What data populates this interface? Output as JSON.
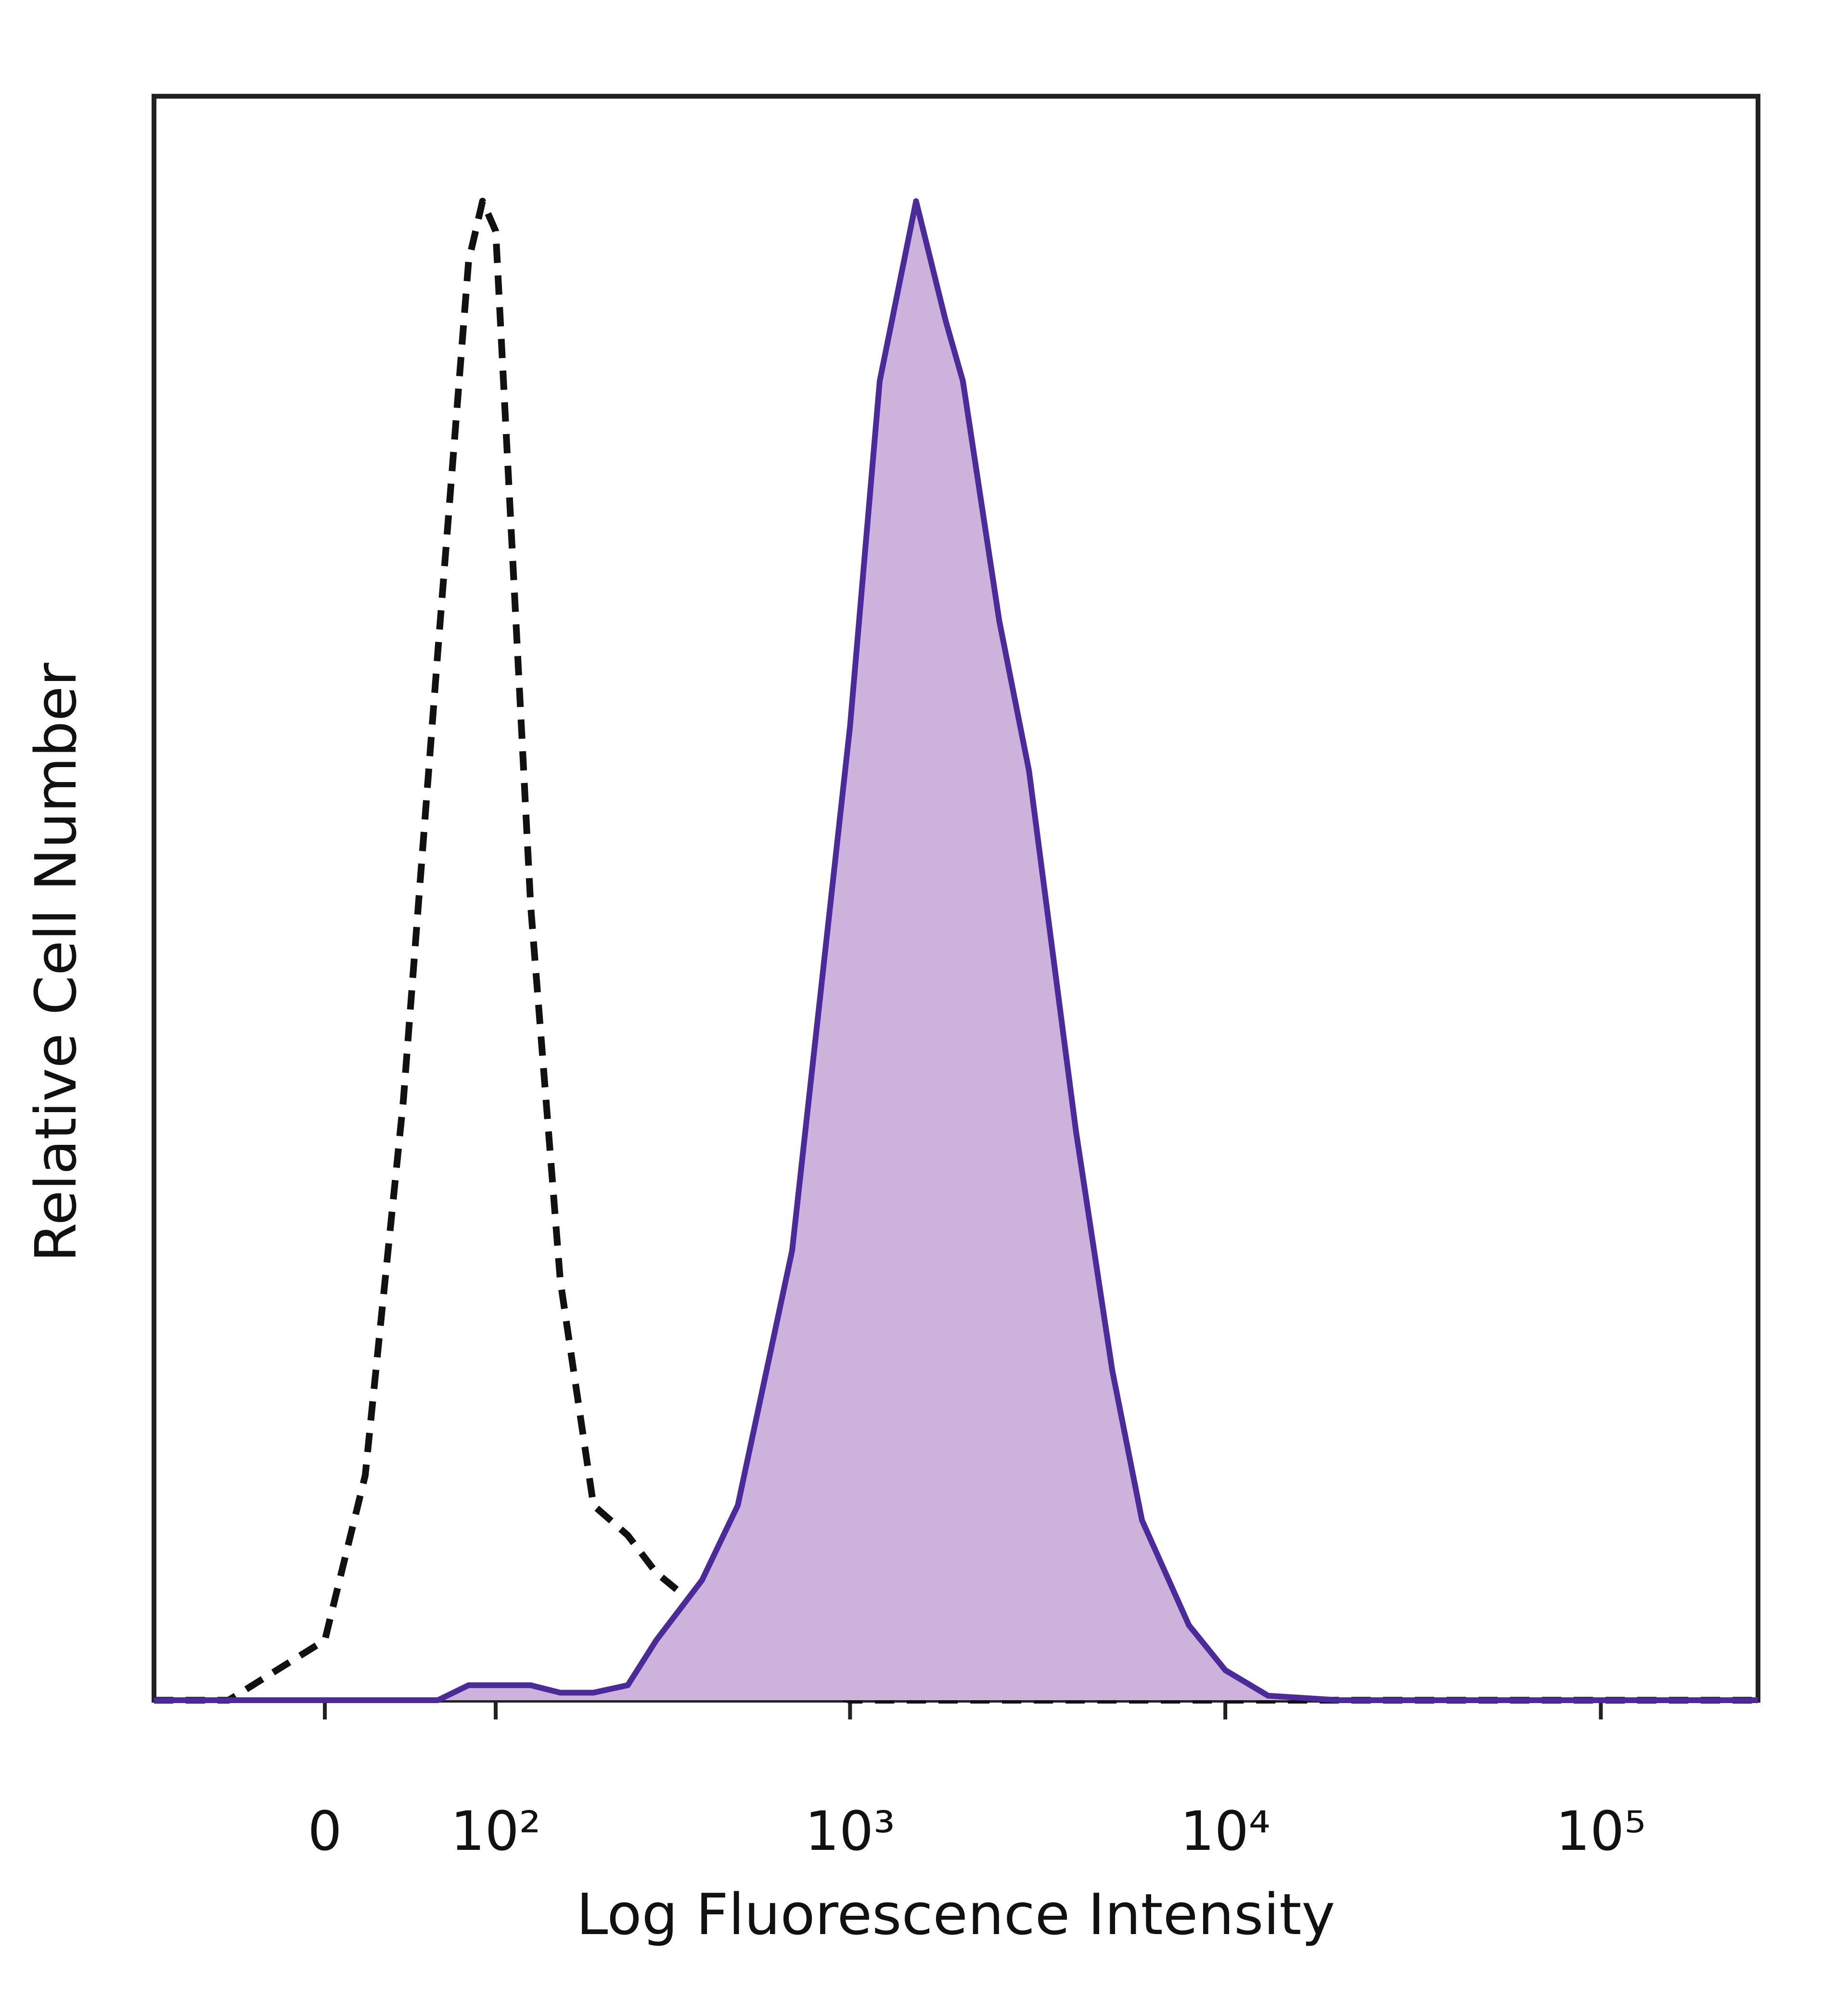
{
  "chart_data": {
    "type": "histogram-overlay",
    "x_label": "Log Fluorescence Intensity",
    "y_label": "Relative Cell Number",
    "xscale": "biexponential",
    "xlim": [
      -100,
      262144
    ],
    "ylim": [
      0,
      107
    ],
    "xticks": [
      0,
      {
        "value": 100,
        "label": "10²"
      },
      {
        "value": 1000,
        "label": "10³"
      },
      {
        "value": 10000,
        "label": "10⁴"
      },
      {
        "value": 100000,
        "label": "10⁵"
      }
    ],
    "x": [
      -100,
      -50,
      0,
      20,
      40,
      60,
      80,
      90,
      100,
      130,
      160,
      200,
      250,
      300,
      400,
      500,
      700,
      1000,
      1200,
      1500,
      1800,
      2000,
      2500,
      3000,
      4000,
      5000,
      6000,
      8000,
      10000,
      13000,
      20000,
      50000,
      100000,
      262144
    ],
    "series": [
      {
        "style": "dashed",
        "color": "#111111",
        "values": [
          0,
          0,
          4,
          15,
          40,
          70,
          96,
          100,
          98,
          53,
          28,
          13,
          11,
          8.5,
          6,
          4,
          1,
          0,
          0,
          0,
          0,
          0,
          0,
          0,
          0,
          0,
          0,
          0,
          0,
          0,
          0,
          0,
          0,
          0
        ]
      },
      {
        "style": "filled",
        "color": "#4b2a9a",
        "fill": "#cdb2dc",
        "values": [
          0,
          0,
          0,
          0,
          0,
          0,
          1,
          1,
          1,
          1,
          0.5,
          0.5,
          1,
          4,
          8,
          13,
          30,
          65,
          88,
          100,
          92,
          88,
          72,
          62,
          38,
          22,
          12,
          5,
          2,
          0.3,
          0,
          0,
          0,
          0
        ]
      }
    ]
  }
}
